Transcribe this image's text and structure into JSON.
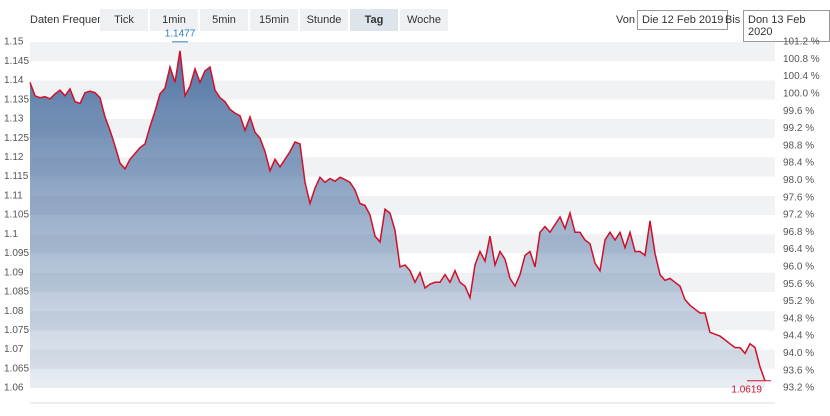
{
  "toolbar": {
    "label": "Daten Frequenz",
    "buttons": [
      "Tick",
      "1min",
      "5min",
      "15min",
      "Stunde",
      "Tag",
      "Woche"
    ],
    "selected": "Tag",
    "from_label": "Von",
    "from": "Die 12 Feb 2019",
    "to_label": "Bis",
    "to": "Don 13 Feb 2020"
  },
  "chart_data": {
    "type": "area",
    "color": "#d0102a",
    "area_color": "#4a6fa0",
    "grid": true,
    "values": [
      1.1395,
      1.136,
      1.1355,
      1.1358,
      1.1352,
      1.1365,
      1.1375,
      1.136,
      1.1378,
      1.1345,
      1.134,
      1.1368,
      1.1372,
      1.1368,
      1.1355,
      1.1305,
      1.127,
      1.123,
      1.1185,
      1.117,
      1.1195,
      1.121,
      1.1225,
      1.1235,
      1.128,
      1.132,
      1.1365,
      1.138,
      1.1435,
      1.1395,
      1.1477,
      1.136,
      1.1385,
      1.143,
      1.1395,
      1.1425,
      1.1435,
      1.1375,
      1.1355,
      1.1345,
      1.1325,
      1.1315,
      1.1308,
      1.127,
      1.1305,
      1.1265,
      1.125,
      1.1215,
      1.1165,
      1.1195,
      1.1175,
      1.1195,
      1.1215,
      1.124,
      1.1235,
      1.1135,
      1.108,
      1.112,
      1.1148,
      1.1135,
      1.1145,
      1.1138,
      1.1148,
      1.1142,
      1.1135,
      1.1115,
      1.108,
      1.1075,
      1.105,
      1.0995,
      1.098,
      1.1065,
      1.1055,
      1.101,
      1.0915,
      1.092,
      1.0905,
      1.0875,
      1.09,
      1.086,
      1.087,
      1.0875,
      1.0875,
      1.0895,
      1.0875,
      1.0905,
      1.0875,
      1.0865,
      1.0835,
      1.092,
      1.0955,
      1.093,
      1.0995,
      1.092,
      1.0955,
      1.0935,
      1.0885,
      1.0865,
      1.0895,
      1.0945,
      1.0955,
      1.0915,
      1.1005,
      1.102,
      1.1005,
      1.1025,
      1.1045,
      1.1015,
      1.1055,
      1.1005,
      1.1005,
      1.0985,
      1.0975,
      1.0925,
      1.0905,
      1.0985,
      1.1005,
      1.0985,
      1.1005,
      1.0965,
      1.1005,
      1.0955,
      1.0955,
      1.0945,
      1.1035,
      1.095,
      1.0895,
      1.088,
      1.0885,
      1.0875,
      1.0865,
      1.083,
      1.0815,
      1.0805,
      1.0795,
      1.0795,
      1.0745,
      1.074,
      1.0735,
      1.0725,
      1.0715,
      1.0705,
      1.0705,
      1.069,
      1.0715,
      1.0705,
      1.0655,
      1.0619
    ],
    "ylim": [
      1.06,
      1.15
    ],
    "yticks": [
      1.06,
      1.065,
      1.07,
      1.075,
      1.08,
      1.085,
      1.09,
      1.095,
      1.1,
      1.105,
      1.11,
      1.115,
      1.12,
      1.125,
      1.13,
      1.135,
      1.14,
      1.145,
      1.15
    ],
    "y2lim": [
      93.2,
      101.2
    ],
    "y2ticks": [
      {
        "value": 93.2,
        "label": "93.2 %"
      },
      {
        "value": 93.6,
        "label": "93.6 %"
      },
      {
        "value": 94.0,
        "label": "94.0 %"
      },
      {
        "value": 94.4,
        "label": "94.4 %"
      },
      {
        "value": 94.8,
        "label": "94.8 %"
      },
      {
        "value": 95.2,
        "label": "95.2 %"
      },
      {
        "value": 95.6,
        "label": "95.6 %"
      },
      {
        "value": 96.0,
        "label": "96.0 %"
      },
      {
        "value": 96.4,
        "label": "96.4 %"
      },
      {
        "value": 96.8,
        "label": "96.8 %"
      },
      {
        "value": 97.2,
        "label": "97.2 %"
      },
      {
        "value": 97.6,
        "label": "97.6 %"
      },
      {
        "value": 98.0,
        "label": "98.0 %"
      },
      {
        "value": 98.4,
        "label": "98.4 %"
      },
      {
        "value": 98.8,
        "label": "98.8 %"
      },
      {
        "value": 99.2,
        "label": "99.2 %"
      },
      {
        "value": 99.6,
        "label": "99.6 %"
      },
      {
        "value": 100.0,
        "label": "100.0 %"
      },
      {
        "value": 100.4,
        "label": "100.4 %"
      },
      {
        "value": 100.8,
        "label": "100.8 %"
      },
      {
        "value": 101.2,
        "label": "101.2 %"
      }
    ],
    "annotations": [
      {
        "label": "1.1477",
        "value": 1.1477,
        "color": "#2a7fc0"
      },
      {
        "label": "1.0619",
        "value": 1.0619,
        "color": "#d0102a"
      }
    ]
  }
}
